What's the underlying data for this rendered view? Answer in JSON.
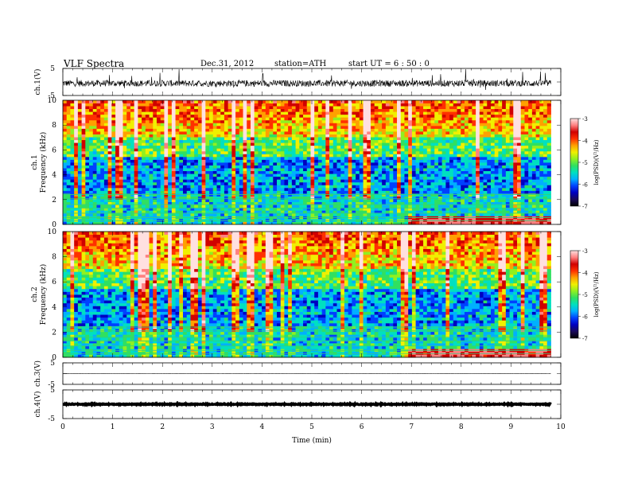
{
  "header": {
    "title": "VLF  Spectra",
    "date": "Dec.31, 2012",
    "station": "station=ATH",
    "start": "start  UT  =   6  : 50 : 0"
  },
  "colors": {
    "colormap": [
      "#000000",
      "#1a0a5a",
      "#0000c0",
      "#0040ff",
      "#00b0ff",
      "#00e0c0",
      "#30e060",
      "#90f020",
      "#f0f000",
      "#ffa000",
      "#ff3000",
      "#d00000",
      "#ff8080",
      "#ffe0e0"
    ],
    "trace": "#000000"
  },
  "chart_data": [
    {
      "type": "line",
      "name": "ch1-waveform",
      "ylabel": "ch.1(V)",
      "ylim": [
        -5,
        5
      ],
      "yticks": [
        "5",
        "-5"
      ],
      "baseline": -0.5,
      "amplitude": 1.2
    },
    {
      "type": "heatmap",
      "name": "ch1-spectrogram",
      "ylabel": "ch.1\nFrequency (kHz)",
      "ylabel_top": "ch.1",
      "ylabel_bottom": "Frequency (kHz)",
      "ylim": [
        0,
        10
      ],
      "yticks": [
        "0",
        "2",
        "4",
        "6",
        "8",
        "10"
      ],
      "colorbar": {
        "label": "log(PSD)(V²/Hz)",
        "range": [
          -7,
          -3
        ],
        "ticks": [
          "-3",
          "-4",
          "-5",
          "-6",
          "-7"
        ]
      }
    },
    {
      "type": "heatmap",
      "name": "ch2-spectrogram",
      "ylabel_top": "ch.2",
      "ylabel_bottom": "Frequency (kHz)",
      "ylim": [
        0,
        10
      ],
      "yticks": [
        "0",
        "2",
        "4",
        "6",
        "8",
        "10"
      ],
      "colorbar": {
        "label": "log(PSD)(V²/Hz)",
        "range": [
          -7,
          -3
        ],
        "ticks": [
          "-3",
          "-4",
          "-5",
          "-6",
          "-7"
        ]
      }
    },
    {
      "type": "line",
      "name": "ch3-waveform",
      "ylabel": "ch.3(V)",
      "ylim": [
        -5,
        5
      ],
      "yticks": [
        "5",
        "-5"
      ],
      "baseline": 0,
      "amplitude": 0.05
    },
    {
      "type": "line",
      "name": "ch4-waveform",
      "ylabel": "ch.4(V)",
      "ylim": [
        -5,
        5
      ],
      "yticks": [
        "5",
        "-5"
      ],
      "baseline": 0,
      "amplitude": 0.15
    }
  ],
  "xaxis": {
    "label": "Time  (min)",
    "xlim": [
      0,
      10
    ],
    "ticks": [
      "0",
      "1",
      "2",
      "3",
      "4",
      "5",
      "6",
      "7",
      "8",
      "9",
      "10"
    ],
    "data_end": 9.8
  }
}
